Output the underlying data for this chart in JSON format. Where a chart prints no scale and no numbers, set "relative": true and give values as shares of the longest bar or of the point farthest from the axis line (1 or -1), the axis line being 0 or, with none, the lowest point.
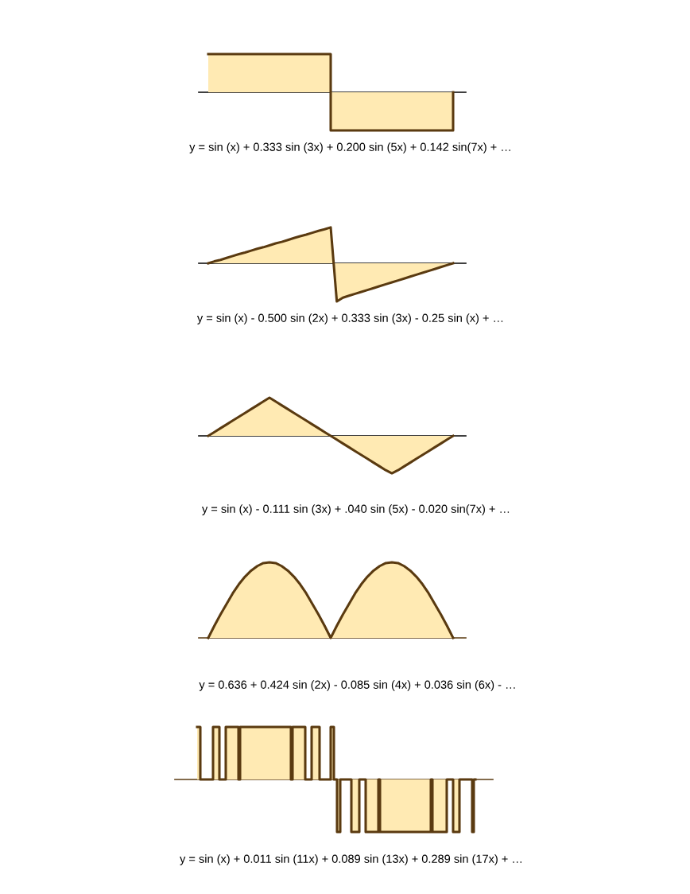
{
  "chart_data": [
    {
      "type": "step",
      "relative": true,
      "xlabel": "y = sin (x) + 0.333 sin (3x) + 0.200 sin (5x) + 0.142 sin(7x) + …",
      "categories": [
        null,
        null,
        null
      ],
      "series": [
        {
          "color": "#5a3a10",
          "values": [
            1,
            -1,
            0
          ]
        }
      ]
    },
    {
      "type": "area",
      "relative": true,
      "xlabel": "y = sin (x) - 0.500 sin (2x) + 0.333 sin (3x) - 0.25 sin (x) + …",
      "categories": [
        null,
        null,
        null,
        null,
        null,
        null,
        null,
        null,
        null,
        null,
        null,
        null,
        null,
        null,
        null,
        null,
        null,
        null,
        null,
        null,
        null,
        null,
        null,
        null,
        null,
        null,
        null,
        null,
        null,
        null,
        null,
        null,
        null,
        null,
        null,
        null,
        null,
        null,
        null,
        null,
        null
      ],
      "series": [
        {
          "color": "#5a3a10",
          "values": [
            0,
            0.05,
            0.09,
            0.14,
            0.19,
            0.24,
            0.28,
            0.33,
            0.38,
            0.42,
            0.47,
            0.52,
            0.56,
            0.61,
            0.66,
            0.71,
            0.75,
            0.8,
            0.85,
            0.89,
            0.94,
            -1,
            -0.9,
            -0.85,
            -0.8,
            -0.75,
            -0.7,
            -0.65,
            -0.6,
            -0.55,
            -0.5,
            -0.45,
            -0.4,
            -0.35,
            -0.3,
            -0.25,
            -0.2,
            -0.15,
            -0.1,
            -0.05,
            0
          ]
        }
      ]
    },
    {
      "type": "area",
      "relative": true,
      "xlabel": "y = sin (x) - 0.111 sin (3x) + .040 sin (5x) - 0.020 sin(7x) + …",
      "categories": [
        null,
        null,
        null,
        null,
        null,
        null,
        null,
        null,
        null,
        null,
        null,
        null,
        null,
        null,
        null,
        null,
        null,
        null,
        null,
        null,
        null,
        null,
        null,
        null,
        null,
        null,
        null,
        null,
        null,
        null,
        null,
        null,
        null,
        null,
        null,
        null,
        null,
        null,
        null,
        null,
        null
      ],
      "series": [
        {
          "color": "#5a3a10",
          "values": [
            0,
            0.1,
            0.2,
            0.3,
            0.4,
            0.5,
            0.6,
            0.7,
            0.8,
            0.9,
            1,
            0.9,
            0.8,
            0.7,
            0.6,
            0.5,
            0.4,
            0.3,
            0.2,
            0.1,
            0,
            -0.1,
            -0.2,
            -0.3,
            -0.4,
            -0.5,
            -0.6,
            -0.7,
            -0.8,
            -0.9,
            -0.98,
            -0.9,
            -0.8,
            -0.7,
            -0.6,
            -0.5,
            -0.4,
            -0.3,
            -0.2,
            -0.1,
            0
          ]
        }
      ]
    },
    {
      "type": "area",
      "relative": true,
      "xlabel": "y = 0.636 + 0.424 sin (2x) - 0.085 sin (4x) + 0.036 sin (6x) - …",
      "categories": [
        null,
        null,
        null,
        null,
        null,
        null,
        null,
        null,
        null,
        null,
        null,
        null,
        null,
        null,
        null,
        null,
        null,
        null,
        null,
        null,
        null,
        null,
        null,
        null,
        null,
        null,
        null,
        null,
        null,
        null,
        null,
        null,
        null,
        null,
        null,
        null,
        null,
        null,
        null,
        null,
        null
      ],
      "series": [
        {
          "color": "#5a3a10",
          "values": [
            0,
            0.16,
            0.31,
            0.45,
            0.59,
            0.71,
            0.81,
            0.89,
            0.95,
            0.99,
            1,
            0.99,
            0.95,
            0.89,
            0.81,
            0.71,
            0.59,
            0.45,
            0.31,
            0.16,
            0,
            0.16,
            0.31,
            0.45,
            0.59,
            0.71,
            0.81,
            0.89,
            0.95,
            0.99,
            1,
            0.99,
            0.95,
            0.89,
            0.81,
            0.71,
            0.59,
            0.45,
            0.31,
            0.16,
            0
          ]
        }
      ]
    },
    {
      "type": "step",
      "relative": true,
      "xlabel": "y = sin (x) + 0.011 sin (11x) + 0.089 sin (13x) + 0.289 sin (17x) + …",
      "categories": [
        null,
        null,
        null,
        null,
        null,
        null,
        null,
        null,
        null,
        null,
        null,
        null,
        null,
        null,
        null,
        null,
        null,
        null,
        null,
        null,
        null,
        null,
        null,
        null,
        null,
        null,
        null,
        null,
        null,
        null,
        null,
        null,
        null,
        null,
        null,
        null,
        null,
        null,
        null,
        null,
        null,
        null,
        null,
        null,
        null,
        null,
        null,
        null,
        null,
        null,
        null,
        null,
        null,
        null,
        null,
        null,
        null,
        null,
        null,
        null,
        null,
        null,
        null,
        null,
        null,
        null,
        null,
        null,
        null,
        null,
        null,
        null,
        null,
        null,
        null,
        null,
        null,
        null,
        null,
        null,
        null,
        null,
        null,
        null,
        null,
        null,
        null,
        null,
        null,
        null,
        null,
        null,
        null,
        null,
        null,
        null,
        null,
        null,
        null,
        null,
        null,
        null,
        null,
        null,
        null,
        null,
        null,
        null,
        null,
        null,
        null,
        null,
        null,
        null,
        null,
        null,
        null,
        null,
        null,
        null,
        null,
        null,
        null,
        null,
        null,
        null,
        null,
        null,
        null,
        null,
        null,
        null,
        null,
        null,
        null,
        null,
        null,
        null,
        null,
        null,
        null,
        null,
        null,
        null,
        null,
        null,
        null,
        null,
        null,
        null,
        null,
        null,
        null,
        null,
        null,
        null,
        null,
        null,
        null,
        null,
        null,
        null,
        null,
        null,
        null,
        null,
        null,
        null,
        null,
        null,
        null,
        null,
        null,
        null,
        null,
        null
      ],
      "series": [
        {
          "color": "#5a3a10",
          "values": [
            1,
            1,
            0,
            0,
            0,
            0,
            0,
            0,
            0,
            0,
            1,
            1,
            1,
            1,
            0,
            0,
            0,
            0,
            1,
            1,
            1,
            1,
            1,
            1,
            1,
            1,
            0,
            1,
            1,
            1,
            1,
            1,
            1,
            1,
            1,
            1,
            1,
            1,
            1,
            1,
            1,
            1,
            1,
            1,
            1,
            1,
            1,
            1,
            1,
            1,
            1,
            1,
            1,
            1,
            1,
            1,
            1,
            1,
            1,
            0,
            1,
            1,
            1,
            1,
            1,
            1,
            1,
            1,
            0,
            0,
            0,
            0,
            1,
            1,
            1,
            1,
            1,
            0,
            0,
            0,
            0,
            0,
            0,
            0,
            1,
            1,
            0,
            0,
            -1,
            -1,
            0,
            0,
            0,
            0,
            0,
            0,
            0,
            -1,
            -1,
            -1,
            -1,
            -1,
            0,
            0,
            0,
            0,
            -1,
            -1,
            -1,
            -1,
            -1,
            -1,
            -1,
            -1,
            0,
            -1,
            -1,
            -1,
            -1,
            -1,
            -1,
            -1,
            -1,
            -1,
            -1,
            -1,
            -1,
            -1,
            -1,
            -1,
            -1,
            -1,
            -1,
            -1,
            -1,
            -1,
            -1,
            -1,
            -1,
            -1,
            -1,
            -1,
            -1,
            -1,
            -1,
            -1,
            -1,
            0,
            -1,
            -1,
            -1,
            -1,
            -1,
            -1,
            -1,
            -1,
            -1,
            0,
            0,
            0,
            0,
            -1,
            -1,
            -1,
            -1,
            0,
            0,
            0,
            0,
            0,
            0,
            0,
            0,
            -1,
            0,
            0
          ]
        }
      ]
    }
  ]
}
